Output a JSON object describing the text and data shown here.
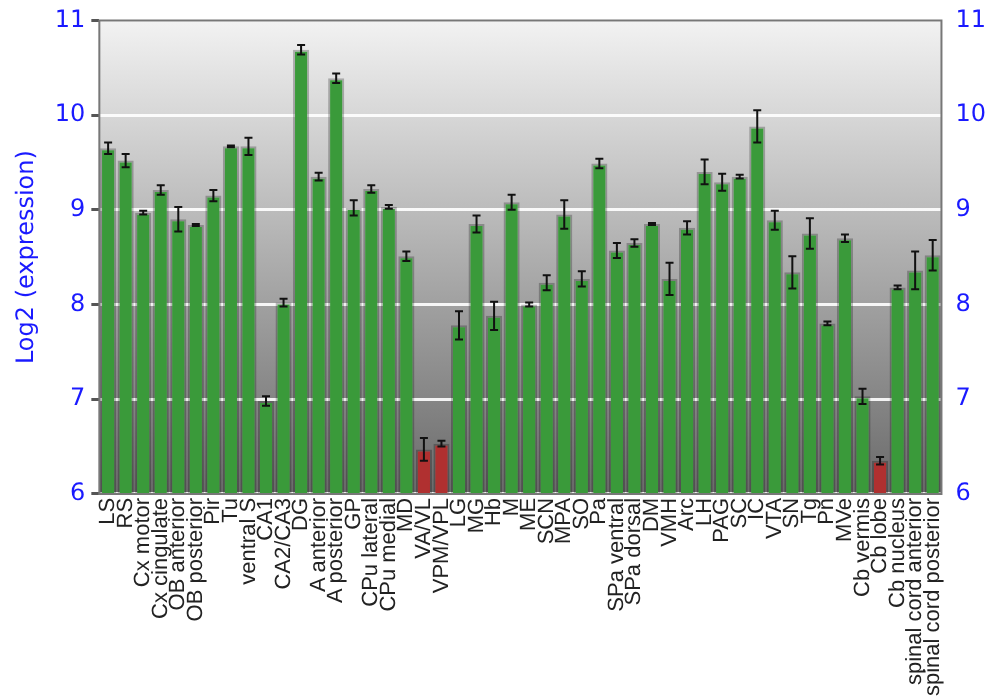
{
  "chart_data": {
    "type": "bar",
    "ylabel": "Log2 (expression)",
    "categories": [
      "LS",
      "RS",
      "Cx motor",
      "Cx cingulate",
      "OB anterior",
      "OB posterior",
      "Pir",
      "Tu",
      "ventral S",
      "CA1",
      "CA2/CA3",
      "DG",
      "A anterior",
      "A posterior",
      "GP",
      "CPu lateral",
      "CPu medial",
      "MD",
      "VA/VL",
      "VPM/VPL",
      "LG",
      "MG",
      "Hb",
      "M",
      "ME",
      "SCN",
      "MPA",
      "SO",
      "Pa",
      "SPa ventral",
      "SPa dorsal",
      "DM",
      "VMH",
      "Arc",
      "LH",
      "PAG",
      "SC",
      "IC",
      "VTA",
      "SN",
      "Tg",
      "Pn",
      "MVe",
      "Cb vermis",
      "Cb lobe",
      "Cb nucleus",
      "spinal cord anterior",
      "spinal cord posterior"
    ],
    "values": [
      9.65,
      9.52,
      8.97,
      9.21,
      8.9,
      8.84,
      9.15,
      9.67,
      9.67,
      6.98,
      8.02,
      10.69,
      9.35,
      10.39,
      9.02,
      9.22,
      9.03,
      8.51,
      6.47,
      6.53,
      7.78,
      8.85,
      7.88,
      9.08,
      8.0,
      8.23,
      8.95,
      8.27,
      9.49,
      8.57,
      8.65,
      8.85,
      8.27,
      8.81,
      9.4,
      9.29,
      9.35,
      9.88,
      8.89,
      8.34,
      8.75,
      7.8,
      8.7,
      7.03,
      6.35,
      8.18,
      8.36,
      8.52
    ],
    "errors": [
      0.06,
      0.07,
      0.02,
      0.05,
      0.13,
      0.01,
      0.06,
      0.01,
      0.09,
      0.05,
      0.04,
      0.05,
      0.04,
      0.05,
      0.08,
      0.04,
      0.02,
      0.05,
      0.12,
      0.03,
      0.15,
      0.09,
      0.15,
      0.08,
      0.02,
      0.08,
      0.15,
      0.08,
      0.05,
      0.08,
      0.04,
      0.01,
      0.17,
      0.07,
      0.13,
      0.09,
      0.02,
      0.17,
      0.1,
      0.17,
      0.16,
      0.02,
      0.04,
      0.08,
      0.04,
      0.02,
      0.2,
      0.16
    ],
    "colors": [
      "#3a9a3a",
      "#3a9a3a",
      "#3a9a3a",
      "#3a9a3a",
      "#3a9a3a",
      "#3a9a3a",
      "#3a9a3a",
      "#3a9a3a",
      "#3a9a3a",
      "#3a9a3a",
      "#3a9a3a",
      "#3a9a3a",
      "#3a9a3a",
      "#3a9a3a",
      "#3a9a3a",
      "#3a9a3a",
      "#3a9a3a",
      "#3a9a3a",
      "#b03030",
      "#b03030",
      "#3a9a3a",
      "#3a9a3a",
      "#3a9a3a",
      "#3a9a3a",
      "#3a9a3a",
      "#3a9a3a",
      "#3a9a3a",
      "#3a9a3a",
      "#3a9a3a",
      "#3a9a3a",
      "#3a9a3a",
      "#3a9a3a",
      "#3a9a3a",
      "#3a9a3a",
      "#3a9a3a",
      "#3a9a3a",
      "#3a9a3a",
      "#3a9a3a",
      "#3a9a3a",
      "#3a9a3a",
      "#3a9a3a",
      "#3a9a3a",
      "#3a9a3a",
      "#3a9a3a",
      "#b03030",
      "#3a9a3a",
      "#3a9a3a",
      "#3a9a3a"
    ],
    "ylim": [
      6,
      11
    ],
    "yticks": [
      6,
      7,
      8,
      9,
      10,
      11
    ],
    "y2lim": [
      6,
      11
    ],
    "y2ticks": [
      6,
      7,
      8,
      9,
      10,
      11
    ],
    "grid": "y",
    "legend": false
  }
}
